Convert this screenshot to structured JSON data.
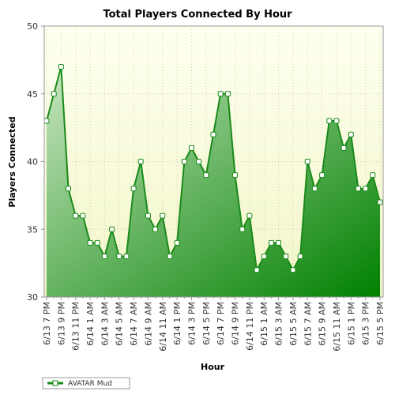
{
  "chart_data": {
    "type": "area",
    "title": "Total Players Connected By Hour",
    "xlabel": "Hour",
    "ylabel": "Players Connected",
    "ylim": [
      30,
      50
    ],
    "yticks": [
      30,
      35,
      40,
      45,
      50
    ],
    "grid": true,
    "legend_position": "bottom-left",
    "colors": {
      "line": "#1a8a1a",
      "fill_light": "#c8e6c0",
      "fill_dark": "#008000",
      "background_top": "#fffff0",
      "background_bottom": "#f2f6c8"
    },
    "x": [
      "6/13 7 PM",
      "6/13 8 PM",
      "6/13 9 PM",
      "6/13 10 PM",
      "6/13 11 PM",
      "6/14 12 AM",
      "6/14 1 AM",
      "6/14 2 AM",
      "6/14 3 AM",
      "6/14 4 AM",
      "6/14 5 AM",
      "6/14 6 AM",
      "6/14 7 AM",
      "6/14 8 AM",
      "6/14 9 AM",
      "6/14 10 AM",
      "6/14 11 AM",
      "6/14 12 PM",
      "6/14 1 PM",
      "6/14 2 PM",
      "6/14 3 PM",
      "6/14 4 PM",
      "6/14 5 PM",
      "6/14 6 PM",
      "6/14 7 PM",
      "6/14 8 PM",
      "6/14 9 PM",
      "6/14 10 PM",
      "6/14 11 PM",
      "6/15 12 AM",
      "6/15 1 AM",
      "6/15 2 AM",
      "6/15 3 AM",
      "6/15 4 AM",
      "6/15 5 AM",
      "6/15 6 AM",
      "6/15 7 AM",
      "6/15 8 AM",
      "6/15 9 AM",
      "6/15 10 AM",
      "6/15 11 AM",
      "6/15 12 PM",
      "6/15 1 PM",
      "6/15 2 PM",
      "6/15 3 PM",
      "6/15 4 PM",
      "6/15 5 PM"
    ],
    "tick_labels": [
      "6/13 7 PM",
      "6/13 9 PM",
      "6/13 11 PM",
      "6/14 1 AM",
      "6/14 3 AM",
      "6/14 5 AM",
      "6/14 7 AM",
      "6/14 9 AM",
      "6/14 11 AM",
      "6/14 1 PM",
      "6/14 3 PM",
      "6/14 5 PM",
      "6/14 7 PM",
      "6/14 9 PM",
      "6/14 11 PM",
      "6/15 1 AM",
      "6/15 3 AM",
      "6/15 5 AM",
      "6/15 7 AM",
      "6/15 9 AM",
      "6/15 11 AM",
      "6/15 1 PM",
      "6/15 3 PM",
      "6/15 5 PM"
    ],
    "series": [
      {
        "name": "AVATAR Mud",
        "values": [
          43,
          45,
          47,
          38,
          36,
          36,
          34,
          34,
          33,
          35,
          33,
          33,
          38,
          40,
          36,
          35,
          36,
          33,
          34,
          40,
          41,
          40,
          39,
          42,
          45,
          45,
          39,
          35,
          36,
          32,
          33,
          34,
          34,
          33,
          32,
          33,
          40,
          38,
          39,
          43,
          43,
          41,
          42,
          38,
          38,
          39,
          37
        ]
      }
    ]
  }
}
